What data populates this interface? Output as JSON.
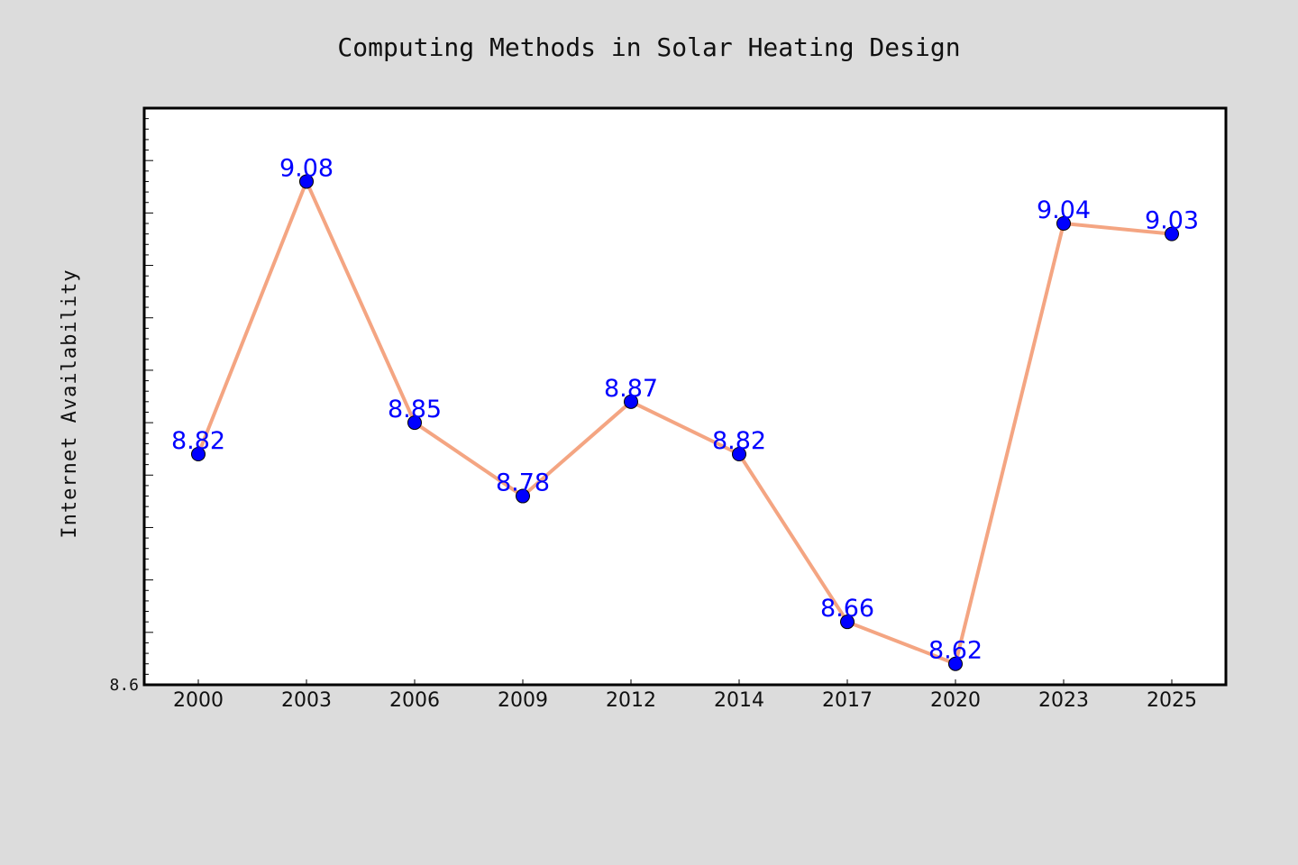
{
  "chart_data": {
    "type": "line",
    "title": "Computing Methods in Solar Heating Design",
    "xlabel": "",
    "ylabel": "Internet Availability",
    "categories": [
      "2000",
      "2003",
      "2006",
      "2009",
      "2012",
      "2014",
      "2017",
      "2020",
      "2023",
      "2025"
    ],
    "series": [
      {
        "values": [
          8.82,
          9.08,
          8.85,
          8.78,
          8.87,
          8.82,
          8.66,
          8.62,
          9.04,
          9.03
        ]
      }
    ],
    "data_labels": [
      "8.82",
      "9.08",
      "8.85",
      "8.78",
      "8.87",
      "8.82",
      "8.66",
      "8.62",
      "9.04",
      "9.03"
    ],
    "ylim": [
      8.6,
      9.15
    ],
    "ytick_labels": [
      "8.6"
    ],
    "grid": false,
    "colors": {
      "line": "#f4a582",
      "marker": "#0000ff",
      "label": "#0000ff",
      "background": "#dcdcdc",
      "plot_background": "#ffffff"
    }
  }
}
